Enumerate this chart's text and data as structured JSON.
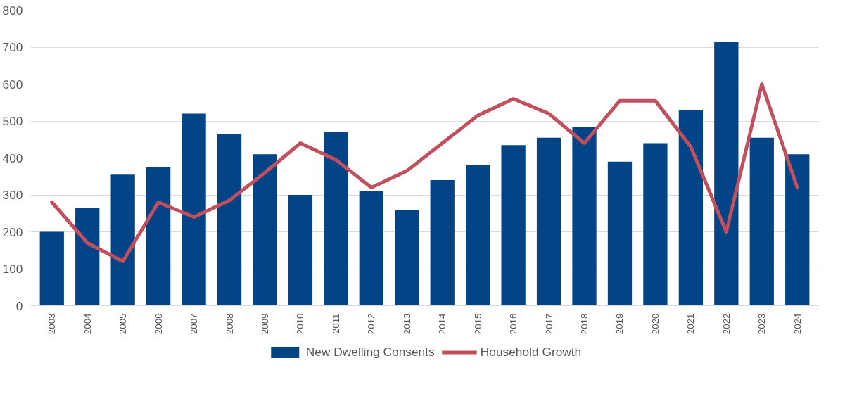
{
  "chart_data": {
    "type": "bar",
    "categories": [
      "2003",
      "2004",
      "2005",
      "2006",
      "2007",
      "2008",
      "2009",
      "2010",
      "2011",
      "2012",
      "2013",
      "2014",
      "2015",
      "2016",
      "2017",
      "2018",
      "2019",
      "2020",
      "2021",
      "2022",
      "2023",
      "2024"
    ],
    "series": [
      {
        "name": "New Dwelling Consents",
        "color": "#034486",
        "values": [
          200,
          265,
          355,
          375,
          520,
          465,
          410,
          300,
          470,
          310,
          260,
          340,
          380,
          435,
          455,
          485,
          390,
          440,
          530,
          715,
          455,
          410
        ]
      },
      {
        "name": "Household Growth",
        "type": "line",
        "color": "#c0505e",
        "values": [
          280,
          170,
          120,
          280,
          240,
          285,
          360,
          440,
          395,
          320,
          365,
          440,
          515,
          560,
          520,
          440,
          555,
          555,
          430,
          200,
          600,
          320
        ]
      }
    ],
    "ylim": [
      0,
      800
    ],
    "yticks": [
      0,
      100,
      200,
      300,
      400,
      500,
      600,
      700,
      800
    ],
    "grid": "y",
    "legend": "bottom",
    "line_style": "solid"
  }
}
